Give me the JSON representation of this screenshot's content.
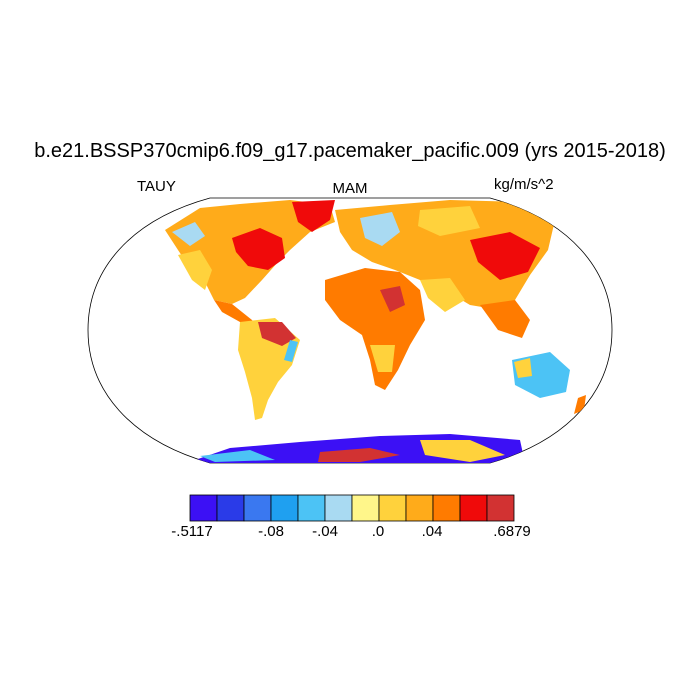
{
  "title": "b.e21.BSSP370cmip6.f09_g17.pacemaker_pacific.009 (yrs 2015-2018)",
  "left_label": "TAUY",
  "center_label": "MAM",
  "right_label": "kg/m/s^2",
  "colorbar": {
    "colors": [
      "#3c10f5",
      "#2a3be8",
      "#3a78f0",
      "#1fa0f0",
      "#4cc3f5",
      "#a9daf2",
      "#fff68a",
      "#ffd23c",
      "#ffab1a",
      "#ff7b00",
      "#f00a0a",
      "#d23232"
    ],
    "tick_labels": [
      "-.5117",
      "-.08",
      "-.04",
      ".0",
      ".04",
      ".6879"
    ]
  }
}
